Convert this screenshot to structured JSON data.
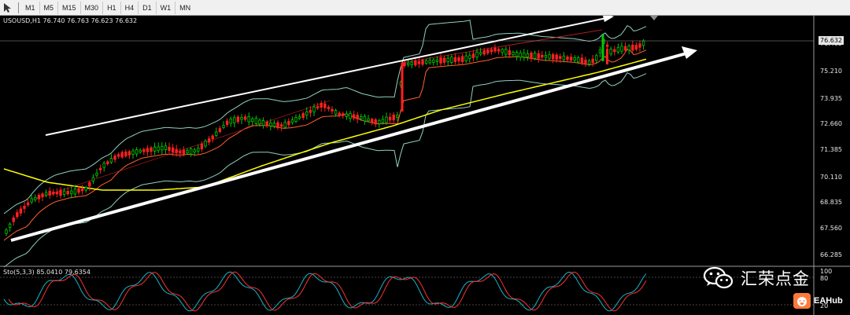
{
  "toolbar": {
    "timeframes": [
      "M1",
      "M5",
      "M15",
      "M30",
      "H1",
      "H4",
      "D1",
      "W1",
      "MN"
    ]
  },
  "chart": {
    "symbol_info": "USOUSD,H1  76.740 76.763 76.623 76.632",
    "current_price": "76.632",
    "price_labels": [
      "76.485",
      "75.210",
      "73.935",
      "72.660",
      "71.385",
      "70.110",
      "68.835",
      "67.560",
      "66.285"
    ],
    "stochastic_info": "Sto(5,3,3) 85.0410 79.6354",
    "stochastic_labels": [
      "100",
      "80",
      "20"
    ]
  },
  "watermark": {
    "text": "汇荣点金",
    "icon": "wechat-icon"
  },
  "logo": {
    "text": "EAHub",
    "icon": "pig-icon"
  },
  "colors": {
    "bull": "#00c800",
    "bear": "#ff2020",
    "ma_slow": "#ffff00",
    "ma_fast": "#ff6030",
    "band": "#8fd0c0",
    "arrow": "#ffffff"
  }
}
